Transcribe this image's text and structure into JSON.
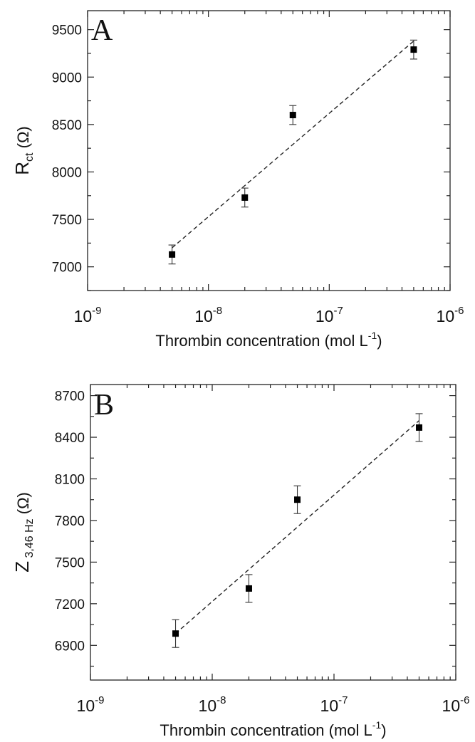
{
  "chart_data": [
    {
      "type": "scatter",
      "panel_label": "A",
      "xlabel": "Thrombin concentration (mol L⁻¹)",
      "xlabel_main": "Thrombin concentration (mol L",
      "xlabel_sup": "-1",
      "xlabel_end": ")",
      "ylabel": "R_ct (Ω)",
      "ylabel_main": "R",
      "ylabel_sub": "ct",
      "ylabel_end": " (Ω)",
      "x_scale": "log",
      "xlim": [
        1e-09,
        1e-06
      ],
      "xticks": [
        {
          "value": 1e-09,
          "base": "10",
          "exp": "-9"
        },
        {
          "value": 1e-08,
          "base": "10",
          "exp": "-8"
        },
        {
          "value": 1e-07,
          "base": "10",
          "exp": "-7"
        },
        {
          "value": 1e-06,
          "base": "10",
          "exp": "-6"
        }
      ],
      "ylim": [
        6750,
        9700
      ],
      "yticks": [
        7000,
        7500,
        8000,
        8500,
        9000,
        9500
      ],
      "points": [
        {
          "x": 5e-09,
          "y": 7130,
          "err": 100
        },
        {
          "x": 2e-08,
          "y": 7730,
          "err": 100
        },
        {
          "x": 5e-08,
          "y": 8600,
          "err": 100
        },
        {
          "x": 5e-07,
          "y": 9290,
          "err": 100
        }
      ],
      "fit_line": {
        "x": [
          5e-09,
          5e-07
        ],
        "y": [
          7200,
          9380
        ]
      },
      "grid": false,
      "legend": "none"
    },
    {
      "type": "scatter",
      "panel_label": "B",
      "xlabel": "Thrombin concentration (mol L⁻¹)",
      "xlabel_main": "Thrombin concentration (mol L",
      "xlabel_sup": "-1",
      "xlabel_end": ")",
      "ylabel": "Z 3,46 Hz (Ω)",
      "ylabel_main": "Z",
      "ylabel_sub": " 3,46 Hz",
      "ylabel_end": " (Ω)",
      "x_scale": "log",
      "xlim": [
        1e-09,
        1e-06
      ],
      "xticks": [
        {
          "value": 1e-09,
          "base": "10",
          "exp": "-9"
        },
        {
          "value": 1e-08,
          "base": "10",
          "exp": "-8"
        },
        {
          "value": 1e-07,
          "base": "10",
          "exp": "-7"
        },
        {
          "value": 1e-06,
          "base": "10",
          "exp": "-6"
        }
      ],
      "ylim": [
        6650,
        8780
      ],
      "yticks": [
        6900,
        7200,
        7500,
        7800,
        8100,
        8400,
        8700
      ],
      "points": [
        {
          "x": 5e-09,
          "y": 6985,
          "err": 100
        },
        {
          "x": 2e-08,
          "y": 7310,
          "err": 100
        },
        {
          "x": 5e-08,
          "y": 7950,
          "err": 100
        },
        {
          "x": 5e-07,
          "y": 8470,
          "err": 100
        }
      ],
      "fit_line": {
        "x": [
          5e-09,
          5e-07
        ],
        "y": [
          6985,
          8520
        ]
      },
      "grid": false,
      "legend": "none"
    }
  ]
}
